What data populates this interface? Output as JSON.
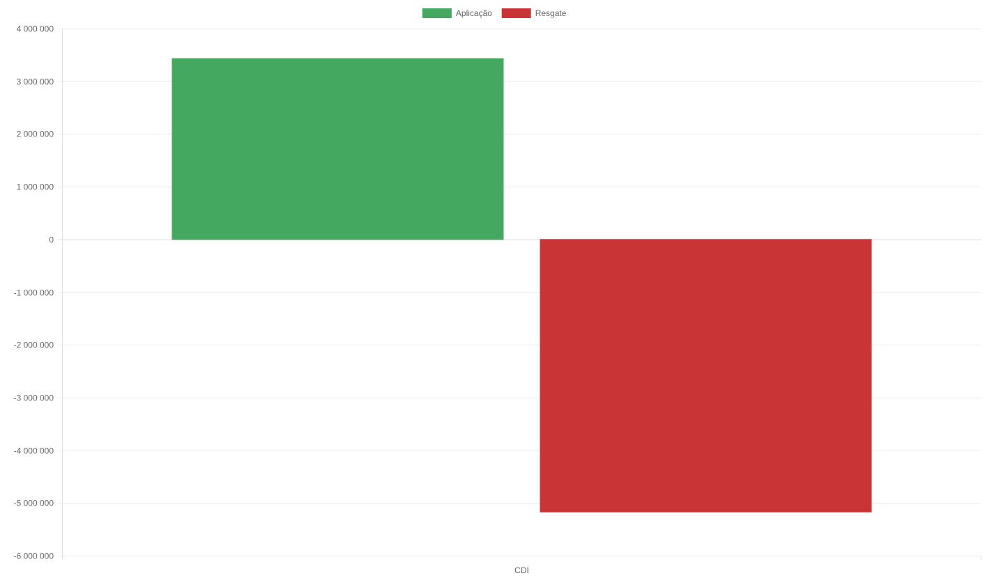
{
  "chart_data": {
    "type": "bar",
    "categories": [
      "CDI"
    ],
    "series": [
      {
        "name": "Aplicação",
        "values": [
          3430000
        ],
        "color": "#45a860"
      },
      {
        "name": "Resgate",
        "values": [
          -5170000
        ],
        "color": "#c93436"
      }
    ],
    "yticks": [
      {
        "value": 4000000,
        "label": "4 000 000"
      },
      {
        "value": 3000000,
        "label": "3 000 000"
      },
      {
        "value": 2000000,
        "label": "2 000 000"
      },
      {
        "value": 1000000,
        "label": "1 000 000"
      },
      {
        "value": 0,
        "label": "0"
      },
      {
        "value": -1000000,
        "label": "-1 000 000"
      },
      {
        "value": -2000000,
        "label": "-2 000 000"
      },
      {
        "value": -3000000,
        "label": "-3 000 000"
      },
      {
        "value": -4000000,
        "label": "-4 000 000"
      },
      {
        "value": -5000000,
        "label": "-5 000 000"
      },
      {
        "value": -6000000,
        "label": "-6 000 000"
      }
    ],
    "ylim": [
      -6000000,
      4000000
    ],
    "grid": true,
    "legend_position": "top-center",
    "title": "",
    "xlabel": "",
    "ylabel": ""
  }
}
